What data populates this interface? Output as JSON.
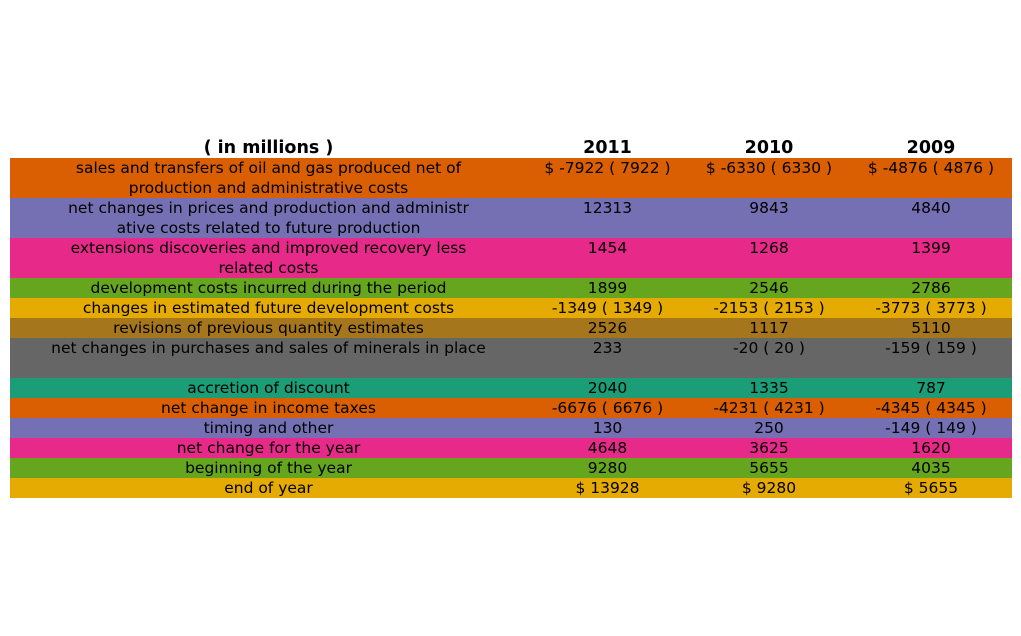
{
  "chart_data": {
    "type": "table",
    "columns": [
      "( in millions )",
      "2011",
      "2010",
      "2009"
    ],
    "row_colors": [
      "#d95f02",
      "#7570b3",
      "#e7298a",
      "#66a61e",
      "#e6ab02",
      "#a6761d",
      "#666666",
      "#1b9e77",
      "#d95f02",
      "#7570b3",
      "#e7298a",
      "#66a61e",
      "#e6ab02"
    ],
    "rows": [
      {
        "label": "sales and transfers of oil and gas produced net of production and administrative costs",
        "values": [
          "$ -7922 ( 7922 )",
          "$ -6330 ( 6330 )",
          "$ -4876 ( 4876 )"
        ]
      },
      {
        "label": "net changes in prices and production and administr ative costs related to future production",
        "values": [
          "12313",
          "9843",
          "4840"
        ]
      },
      {
        "label": "extensions discoveries and improved recovery less related costs",
        "values": [
          "1454",
          "1268",
          "1399"
        ]
      },
      {
        "label": "development costs incurred during the period",
        "values": [
          "1899",
          "2546",
          "2786"
        ]
      },
      {
        "label": "changes in estimated future development costs",
        "values": [
          "-1349 ( 1349 )",
          "-2153 ( 2153 )",
          "-3773 ( 3773 )"
        ]
      },
      {
        "label": "revisions of previous quantity estimates",
        "values": [
          "2526",
          "1117",
          "5110"
        ]
      },
      {
        "label": "net changes in purchases and sales of minerals in place",
        "values": [
          "233",
          "-20 ( 20 )",
          "-159 ( 159 )"
        ]
      },
      {
        "label": "accretion of discount",
        "values": [
          "2040",
          "1335",
          "787"
        ]
      },
      {
        "label": "net change in income taxes",
        "values": [
          "-6676 ( 6676 )",
          "-4231 ( 4231 )",
          "-4345 ( 4345 )"
        ]
      },
      {
        "label": "timing and other",
        "values": [
          "130",
          "250",
          "-149 ( 149 )"
        ]
      },
      {
        "label": "net change for the year",
        "values": [
          "4648",
          "3625",
          "1620"
        ]
      },
      {
        "label": "beginning of the year",
        "values": [
          "9280",
          "5655",
          "4035"
        ]
      },
      {
        "label": "end of year",
        "values": [
          "$ 13928",
          "$ 9280",
          "$ 5655"
        ]
      }
    ]
  }
}
